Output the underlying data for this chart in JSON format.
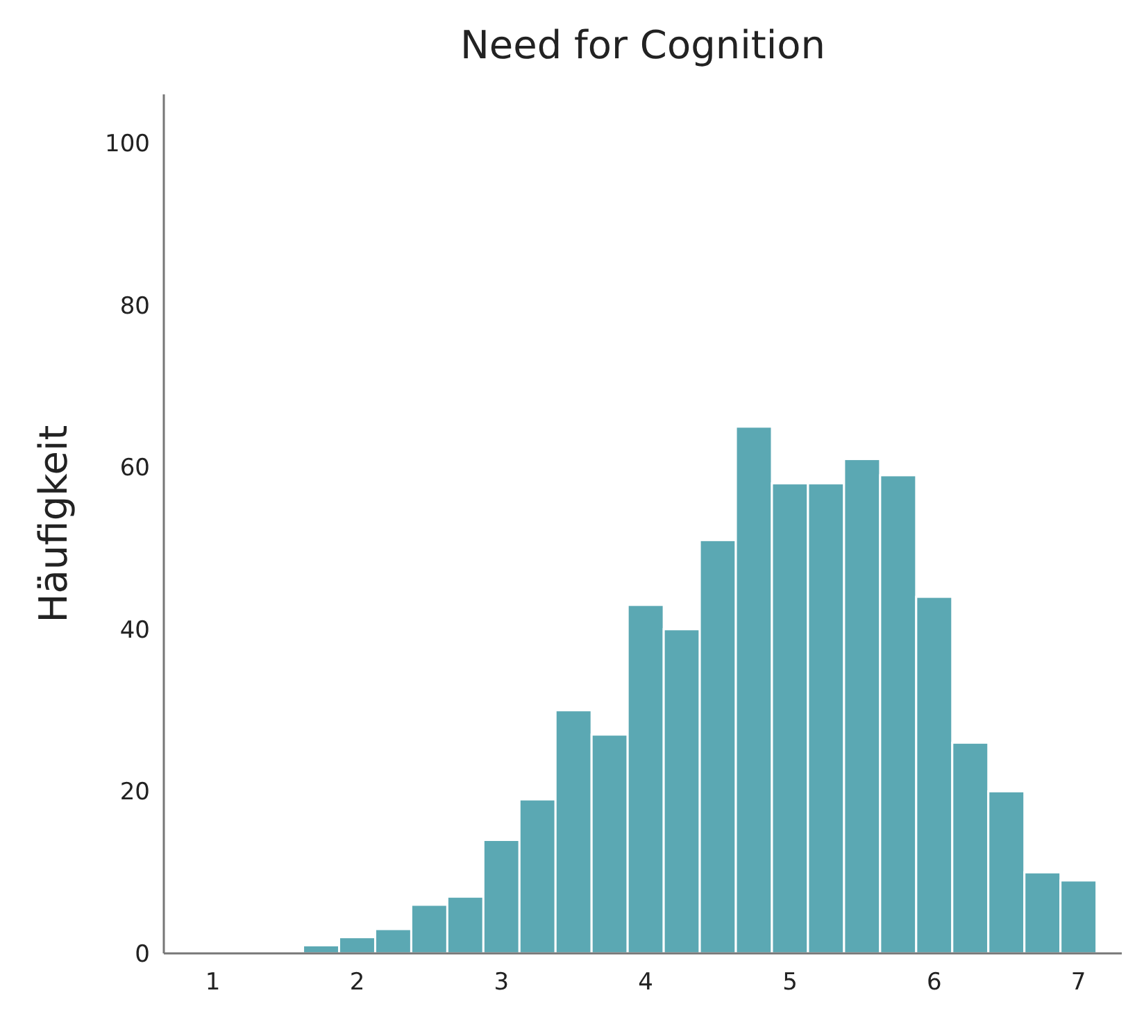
{
  "chart_data": {
    "type": "histogram",
    "title": "Need for Cognition",
    "ylabel": "Häufigkeit",
    "bins": [
      1.625,
      1.875,
      2.125,
      2.375,
      2.625,
      2.875,
      3.125,
      3.375,
      3.625,
      3.875,
      4.125,
      4.375,
      4.625,
      4.875,
      5.125,
      5.375,
      5.625,
      5.875,
      6.125,
      6.375,
      6.625,
      6.875,
      7.125
    ],
    "values": [
      1,
      2,
      3,
      6,
      7,
      14,
      19,
      30,
      27,
      43,
      40,
      51,
      65,
      58,
      58,
      61,
      59,
      44,
      26,
      20,
      10,
      9
    ],
    "color": "#5ba8b3",
    "xlim": [
      0.66,
      7.3
    ],
    "xticks": [
      1,
      2,
      3,
      4,
      5,
      6,
      7
    ],
    "ylim": [
      0,
      106
    ],
    "yticks": [
      0,
      20,
      40,
      60,
      80,
      100
    ],
    "grid": false
  }
}
